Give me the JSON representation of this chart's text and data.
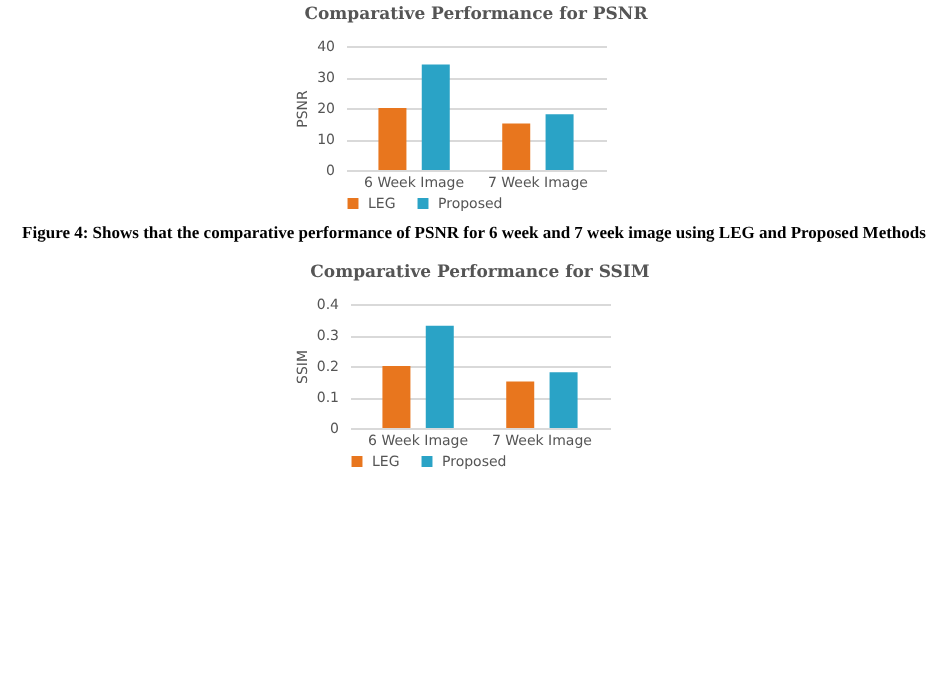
{
  "chart_data": [
    {
      "type": "bar",
      "title": "Comparative Performance for PSNR",
      "ylabel": "PSNR",
      "categories": [
        "6 Week Image",
        "7 Week Image"
      ],
      "series": [
        {
          "name": "LEG",
          "color": "#e8761e",
          "values": [
            20,
            15
          ]
        },
        {
          "name": "Proposed",
          "color": "#2aa3c6",
          "values": [
            34,
            18
          ]
        }
      ],
      "ylim": [
        0,
        40
      ],
      "yticks": [
        0,
        10,
        20,
        30,
        40
      ],
      "grid": "y",
      "legend": "bottom",
      "annotations": [
        "Figure 4: Shows that the comparative performance of PSNR for 6 week and 7 week image using LEG and Proposed Methods"
      ]
    },
    {
      "type": "bar",
      "title": "Comparative Performance for SSIM",
      "ylabel": "SSIM",
      "categories": [
        "6 Week Image",
        "7 Week Image"
      ],
      "series": [
        {
          "name": "LEG",
          "color": "#e8761e",
          "values": [
            0.2,
            0.15
          ]
        },
        {
          "name": "Proposed",
          "color": "#2aa3c6",
          "values": [
            0.33,
            0.18
          ]
        }
      ],
      "ylim": [
        0,
        0.4
      ],
      "yticks": [
        0,
        0.1,
        0.2,
        0.3,
        0.4
      ],
      "grid": "y",
      "legend": "bottom"
    }
  ]
}
